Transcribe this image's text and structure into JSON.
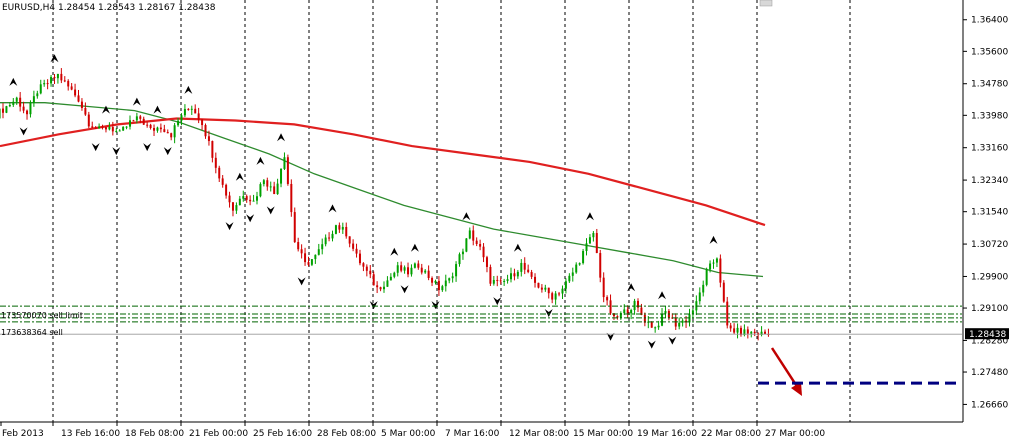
{
  "chart_header": {
    "symbol": "EURUSD,H4",
    "open": "1.28454",
    "high": "1.28543",
    "low": "1.28167",
    "close": "1.28438",
    "text": "EURUSD,H4  1.28454 1.28543 1.28167 1.28438"
  },
  "orders": [
    {
      "label": "173570070 sell limit"
    },
    {
      "label": "173638364 sell"
    }
  ],
  "current_price_tag": "1.28438",
  "colors": {
    "background": "#ffffff",
    "grid": "#000000",
    "bull_candle": "#00a000",
    "bear_candle": "#d00000",
    "ma_fast": "#2e8b2e",
    "ma_slow": "#e02020",
    "order_lines": "#006400",
    "target_line": "#000080",
    "arrow": "#c00000"
  },
  "chart_data": {
    "type": "candlestick",
    "symbol": "EURUSD",
    "timeframe": "H4",
    "ylim": [
      1.2624,
      1.369
    ],
    "y_ticks": [
      "1.36400",
      "1.35600",
      "1.34780",
      "1.33980",
      "1.33160",
      "1.32340",
      "1.31540",
      "1.30720",
      "1.29900",
      "1.29100",
      "1.28280",
      "1.27480",
      "1.26660"
    ],
    "y_tick_values": [
      1.364,
      1.356,
      1.3478,
      1.3398,
      1.3316,
      1.3234,
      1.3154,
      1.3072,
      1.299,
      1.291,
      1.2828,
      1.2748,
      1.2666
    ],
    "x_ticks": [
      "Feb 2013",
      "13 Feb 16:00",
      "18 Feb 08:00",
      "21 Feb 00:00",
      "25 Feb 16:00",
      "28 Feb 08:00",
      "5 Mar 00:00",
      "7 Mar 16:00",
      "12 Mar 08:00",
      "15 Mar 00:00",
      "19 Mar 16:00",
      "22 Mar 08:00",
      "27 Mar 00:00"
    ],
    "close_series": [
      1.342,
      1.344,
      1.34,
      1.346,
      1.348,
      1.35,
      1.347,
      1.344,
      1.338,
      1.336,
      1.337,
      1.335,
      1.338,
      1.339,
      1.336,
      1.337,
      1.335,
      1.34,
      1.342,
      1.338,
      1.33,
      1.322,
      1.316,
      1.32,
      1.318,
      1.324,
      1.32,
      1.33,
      1.308,
      1.302,
      1.304,
      1.308,
      1.312,
      1.31,
      1.304,
      1.3,
      1.296,
      1.298,
      1.301,
      1.3,
      1.302,
      1.299,
      1.296,
      1.298,
      1.304,
      1.31,
      1.306,
      1.298,
      1.297,
      1.299,
      1.302,
      1.298,
      1.296,
      1.294,
      1.296,
      1.3,
      1.305,
      1.31,
      1.294,
      1.288,
      1.29,
      1.292,
      1.288,
      1.286,
      1.29,
      1.287,
      1.288,
      1.292,
      1.3,
      1.304,
      1.286,
      1.285,
      1.2848,
      1.2846,
      1.2844
    ],
    "ma_fast": [
      1.343,
      1.343,
      1.342,
      1.341,
      1.338,
      1.334,
      1.33,
      1.325,
      1.321,
      1.317,
      1.314,
      1.311,
      1.309,
      1.307,
      1.305,
      1.303,
      1.3,
      1.299
    ],
    "ma_slow": [
      1.332,
      1.335,
      1.3375,
      1.339,
      1.3385,
      1.3375,
      1.335,
      1.332,
      1.33,
      1.328,
      1.325,
      1.321,
      1.317,
      1.312
    ],
    "order_levels": [
      1.2915,
      1.2895,
      1.2885,
      1.2875
    ],
    "target_level": 1.272,
    "current_price": 1.28438,
    "grid": true
  }
}
